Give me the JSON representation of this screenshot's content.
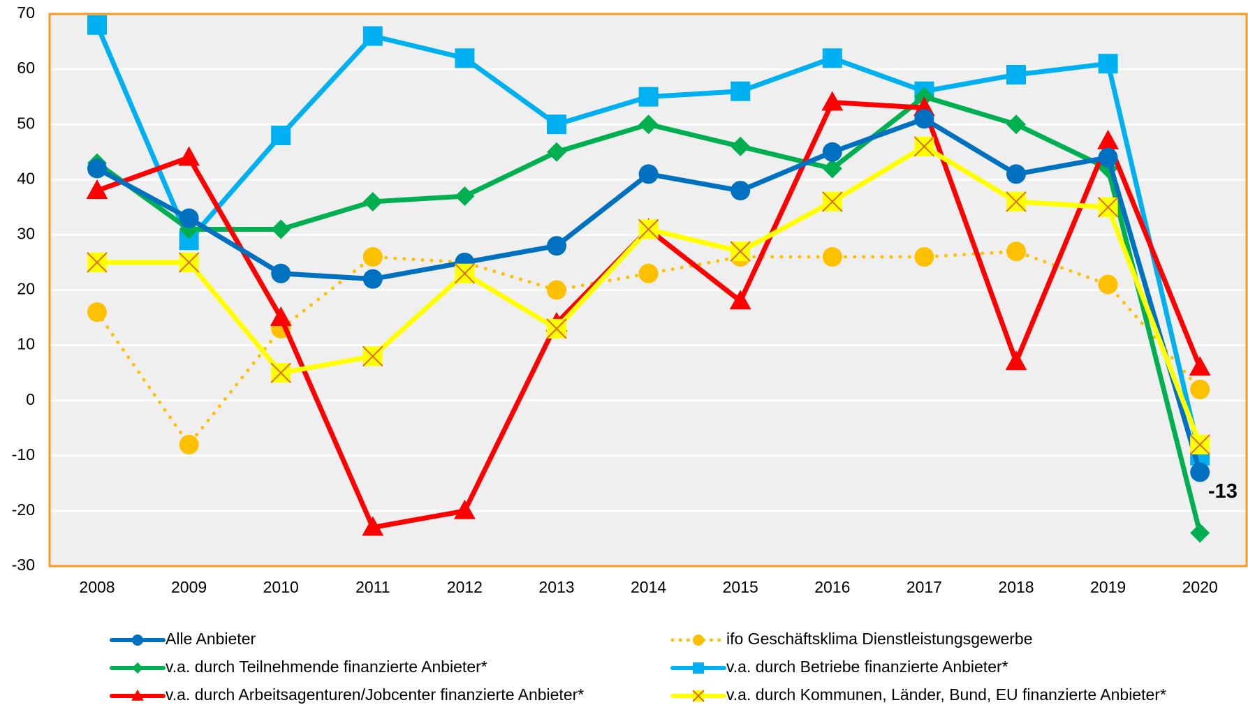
{
  "chart_data": {
    "type": "line",
    "categories": [
      "2008",
      "2009",
      "2010",
      "2011",
      "2012",
      "2013",
      "2014",
      "2015",
      "2016",
      "2017",
      "2018",
      "2019",
      "2020"
    ],
    "ylim": [
      -30,
      70
    ],
    "yticks": [
      -30,
      -20,
      -10,
      0,
      10,
      20,
      30,
      40,
      50,
      60,
      70
    ],
    "grid": true,
    "series": [
      {
        "name": "Alle Anbieter",
        "color": "#0070c0",
        "marker": "circle",
        "values": [
          42,
          33,
          23,
          22,
          25,
          28,
          41,
          38,
          45,
          51,
          41,
          44,
          -13
        ]
      },
      {
        "name": "ifo Geschäftsklima Dienstleistungsgewerbe",
        "color": "#ffc000",
        "marker": "circle",
        "line_style": "dotted",
        "values": [
          16,
          -8,
          13,
          26,
          25,
          20,
          23,
          26,
          26,
          26,
          27,
          21,
          2
        ]
      },
      {
        "name": "v.a.  durch Teilnehmende finanzierte Anbieter*",
        "color": "#00b050",
        "marker": "diamond",
        "values": [
          43,
          31,
          31,
          36,
          37,
          45,
          50,
          46,
          42,
          55,
          50,
          42,
          -24
        ]
      },
      {
        "name": "v.a. durch Betriebe finanzierte Anbieter*",
        "color": "#00b0f0",
        "marker": "square",
        "values": [
          68,
          29,
          48,
          66,
          62,
          50,
          55,
          56,
          62,
          56,
          59,
          61,
          -10
        ]
      },
      {
        "name": "v.a. durch Arbeitsagenturen/Jobcenter finanzierte Anbieter*",
        "color": "#ff0000",
        "marker": "triangle",
        "values": [
          38,
          44,
          15,
          -23,
          -20,
          14,
          31,
          18,
          54,
          53,
          7,
          47,
          6
        ]
      },
      {
        "name": "v.a. durch Kommunen, Länder, Bund, EU finanzierte Anbieter*",
        "color": "#ffff00",
        "marker": "xsquare",
        "values": [
          25,
          25,
          5,
          8,
          23,
          13,
          31,
          27,
          36,
          46,
          36,
          35,
          -8
        ]
      }
    ]
  }
}
